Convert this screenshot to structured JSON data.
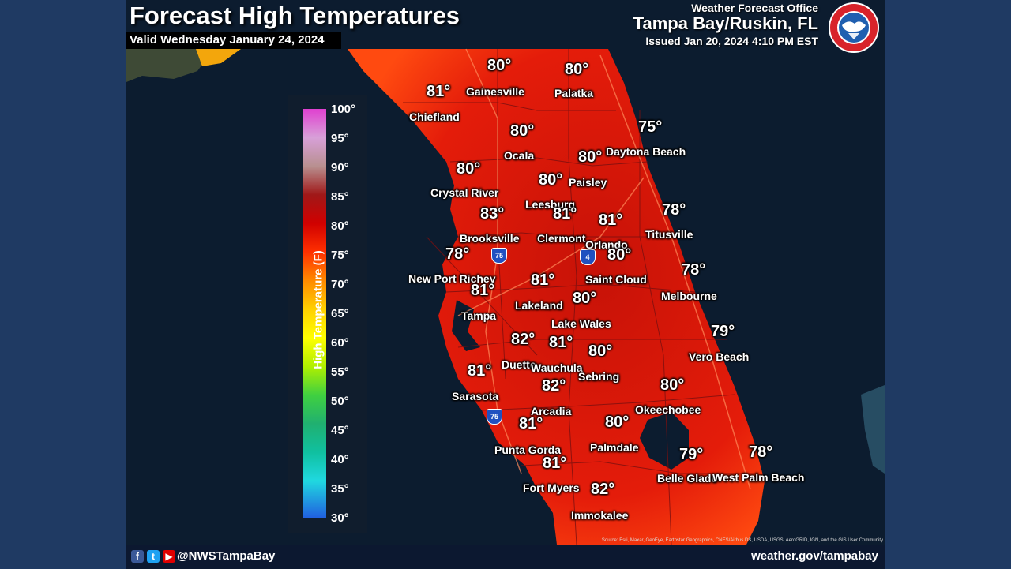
{
  "header": {
    "title": "Forecast High Temperatures",
    "valid": "Valid Wednesday January 24, 2024",
    "office_label": "Weather Forecast Office",
    "office_name": "Tampa Bay/Ruskin, FL",
    "issued": "Issued Jan 20, 2024 4:10 PM EST"
  },
  "legend": {
    "title": "High Temperature (F)",
    "ticks": [
      "100°",
      "95°",
      "90°",
      "85°",
      "80°",
      "75°",
      "70°",
      "65°",
      "60°",
      "55°",
      "50°",
      "45°",
      "40°",
      "35°",
      "30°"
    ]
  },
  "cities": [
    {
      "name": "Gainesville",
      "temp": "80°"
    },
    {
      "name": "Palatka",
      "temp": "80°"
    },
    {
      "name": "Chiefland",
      "temp": "81°"
    },
    {
      "name": "Daytona Beach",
      "temp": "75°"
    },
    {
      "name": "Ocala",
      "temp": "80°"
    },
    {
      "name": "Paisley",
      "temp": "80°"
    },
    {
      "name": "Crystal River",
      "temp": "80°"
    },
    {
      "name": "Leesburg",
      "temp": "80°"
    },
    {
      "name": "Brooksville",
      "temp": "83°"
    },
    {
      "name": "Clermont",
      "temp": "81°"
    },
    {
      "name": "Orlando",
      "temp": "81°"
    },
    {
      "name": "Titusville",
      "temp": "78°"
    },
    {
      "name": "New Port Richey",
      "temp": "78°"
    },
    {
      "name": "Saint Cloud",
      "temp": "80°"
    },
    {
      "name": "Tampa",
      "temp": "81°"
    },
    {
      "name": "Lakeland",
      "temp": "81°"
    },
    {
      "name": "Melbourne",
      "temp": "78°"
    },
    {
      "name": "Lake Wales",
      "temp": "80°"
    },
    {
      "name": "Vero Beach",
      "temp": "79°"
    },
    {
      "name": "Duette",
      "temp": "82°"
    },
    {
      "name": "Wauchula",
      "temp": "81°"
    },
    {
      "name": "Sebring",
      "temp": "80°"
    },
    {
      "name": "Sarasota",
      "temp": "81°"
    },
    {
      "name": "Arcadia",
      "temp": "82°"
    },
    {
      "name": "Okeechobee",
      "temp": "80°"
    },
    {
      "name": "Punta Gorda",
      "temp": "81°"
    },
    {
      "name": "Palmdale",
      "temp": "80°"
    },
    {
      "name": "Belle Glade",
      "temp": "79°"
    },
    {
      "name": "West Palm Beach",
      "temp": "78°"
    },
    {
      "name": "Fort Myers",
      "temp": "81°"
    },
    {
      "name": "Immokalee",
      "temp": "82°"
    }
  ],
  "shields": {
    "i75": "75",
    "i4": "4"
  },
  "attribution": "Source: Esri, Maxar, GeoEye, Earthstar Geographics, CNES/Airbus DS, USDA, USGS, AeroGRID, IGN, and the GIS User Community",
  "footer": {
    "handle": "@NWSTampaBay",
    "site": "weather.gov/tampabay"
  },
  "colors": {
    "land_hot": "#e01a0a",
    "water": "#0c1c2f",
    "frame": "#1f3a63"
  }
}
